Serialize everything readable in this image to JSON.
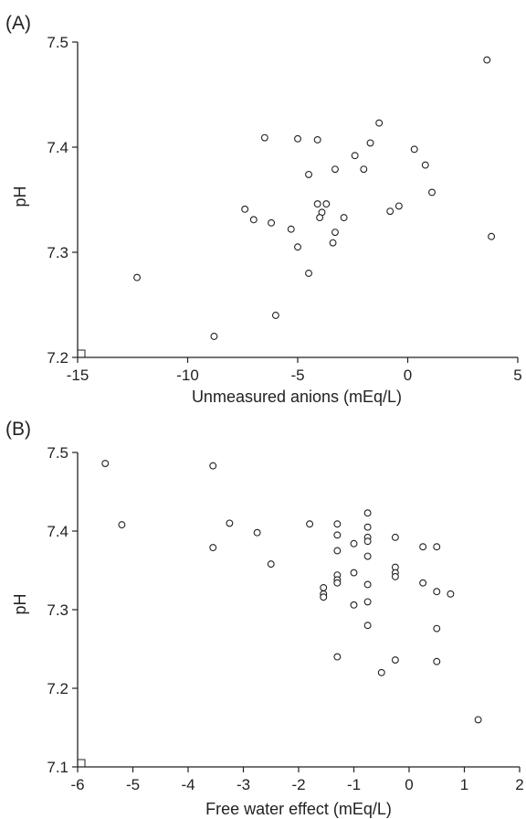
{
  "chart_data": [
    {
      "type": "scatter",
      "panel_label": "(A)",
      "title": "",
      "xlabel": "Unmeasured anions (mEq/L)",
      "ylabel": "pH",
      "xlim": [
        -15,
        5
      ],
      "ylim": [
        7.2,
        7.5
      ],
      "xticks": [
        -15,
        -10,
        -5,
        0,
        5
      ],
      "yticks": [
        7.2,
        7.3,
        7.4,
        7.5
      ],
      "xtick_labels": [
        "-15",
        "-10",
        "-5",
        "0",
        "5"
      ],
      "ytick_labels": [
        "7.2",
        "7.3",
        "7.4",
        "7.5"
      ],
      "grid": false,
      "marker": "open-circle",
      "points": [
        {
          "x": 3.6,
          "y": 7.483
        },
        {
          "x": -1.3,
          "y": 7.423
        },
        {
          "x": -6.5,
          "y": 7.409
        },
        {
          "x": -5.0,
          "y": 7.408
        },
        {
          "x": -4.1,
          "y": 7.407
        },
        {
          "x": -1.7,
          "y": 7.404
        },
        {
          "x": 0.3,
          "y": 7.398
        },
        {
          "x": -2.4,
          "y": 7.392
        },
        {
          "x": 0.8,
          "y": 7.383
        },
        {
          "x": -3.3,
          "y": 7.379
        },
        {
          "x": -2.0,
          "y": 7.379
        },
        {
          "x": -4.5,
          "y": 7.374
        },
        {
          "x": 1.1,
          "y": 7.357
        },
        {
          "x": -4.1,
          "y": 7.346
        },
        {
          "x": -3.7,
          "y": 7.346
        },
        {
          "x": -0.4,
          "y": 7.344
        },
        {
          "x": -7.4,
          "y": 7.341
        },
        {
          "x": -0.8,
          "y": 7.339
        },
        {
          "x": -3.9,
          "y": 7.338
        },
        {
          "x": -4.0,
          "y": 7.333
        },
        {
          "x": -2.9,
          "y": 7.333
        },
        {
          "x": -7.0,
          "y": 7.331
        },
        {
          "x": -6.2,
          "y": 7.328
        },
        {
          "x": -5.3,
          "y": 7.322
        },
        {
          "x": -3.3,
          "y": 7.319
        },
        {
          "x": 3.8,
          "y": 7.315
        },
        {
          "x": -3.4,
          "y": 7.309
        },
        {
          "x": -5.0,
          "y": 7.305
        },
        {
          "x": -4.5,
          "y": 7.28
        },
        {
          "x": -12.3,
          "y": 7.276
        },
        {
          "x": -6.0,
          "y": 7.24
        },
        {
          "x": -8.8,
          "y": 7.22
        }
      ]
    },
    {
      "type": "scatter",
      "panel_label": "(B)",
      "title": "",
      "xlabel": "Free water effect (mEq/L)",
      "ylabel": "pH",
      "xlim": [
        -6,
        2
      ],
      "ylim": [
        7.1,
        7.5
      ],
      "xticks": [
        -6,
        -5,
        -4,
        -3,
        -2,
        -1,
        0,
        1,
        2
      ],
      "yticks": [
        7.1,
        7.2,
        7.3,
        7.4,
        7.5
      ],
      "xtick_labels": [
        "-6",
        "-5",
        "-4",
        "-3",
        "-2",
        "-1",
        "0",
        "1",
        "2"
      ],
      "ytick_labels": [
        "7.1",
        "7.2",
        "7.3",
        "7.4",
        "7.5"
      ],
      "grid": false,
      "marker": "open-circle",
      "points": [
        {
          "x": -5.5,
          "y": 7.486
        },
        {
          "x": -3.55,
          "y": 7.483
        },
        {
          "x": -5.2,
          "y": 7.408
        },
        {
          "x": -3.25,
          "y": 7.41
        },
        {
          "x": -1.8,
          "y": 7.409
        },
        {
          "x": -1.3,
          "y": 7.409
        },
        {
          "x": -2.75,
          "y": 7.398
        },
        {
          "x": -1.3,
          "y": 7.395
        },
        {
          "x": -0.75,
          "y": 7.423
        },
        {
          "x": -0.75,
          "y": 7.405
        },
        {
          "x": -0.75,
          "y": 7.392
        },
        {
          "x": -0.75,
          "y": 7.387
        },
        {
          "x": -0.25,
          "y": 7.392
        },
        {
          "x": -1.0,
          "y": 7.384
        },
        {
          "x": -3.55,
          "y": 7.379
        },
        {
          "x": 0.25,
          "y": 7.38
        },
        {
          "x": 0.5,
          "y": 7.38
        },
        {
          "x": -1.3,
          "y": 7.375
        },
        {
          "x": -0.75,
          "y": 7.368
        },
        {
          "x": -2.5,
          "y": 7.358
        },
        {
          "x": -0.25,
          "y": 7.354
        },
        {
          "x": -1.0,
          "y": 7.347
        },
        {
          "x": -0.25,
          "y": 7.347
        },
        {
          "x": -1.3,
          "y": 7.344
        },
        {
          "x": -0.25,
          "y": 7.342
        },
        {
          "x": -1.3,
          "y": 7.338
        },
        {
          "x": -1.3,
          "y": 7.334
        },
        {
          "x": 0.25,
          "y": 7.334
        },
        {
          "x": -0.75,
          "y": 7.332
        },
        {
          "x": -1.55,
          "y": 7.328
        },
        {
          "x": 0.5,
          "y": 7.323
        },
        {
          "x": -1.55,
          "y": 7.32
        },
        {
          "x": 0.75,
          "y": 7.32
        },
        {
          "x": -1.55,
          "y": 7.316
        },
        {
          "x": -0.75,
          "y": 7.31
        },
        {
          "x": -1.0,
          "y": 7.306
        },
        {
          "x": -0.75,
          "y": 7.28
        },
        {
          "x": 0.5,
          "y": 7.276
        },
        {
          "x": -1.3,
          "y": 7.24
        },
        {
          "x": -0.25,
          "y": 7.236
        },
        {
          "x": 0.5,
          "y": 7.234
        },
        {
          "x": -0.5,
          "y": 7.22
        },
        {
          "x": 1.25,
          "y": 7.16
        }
      ]
    }
  ]
}
